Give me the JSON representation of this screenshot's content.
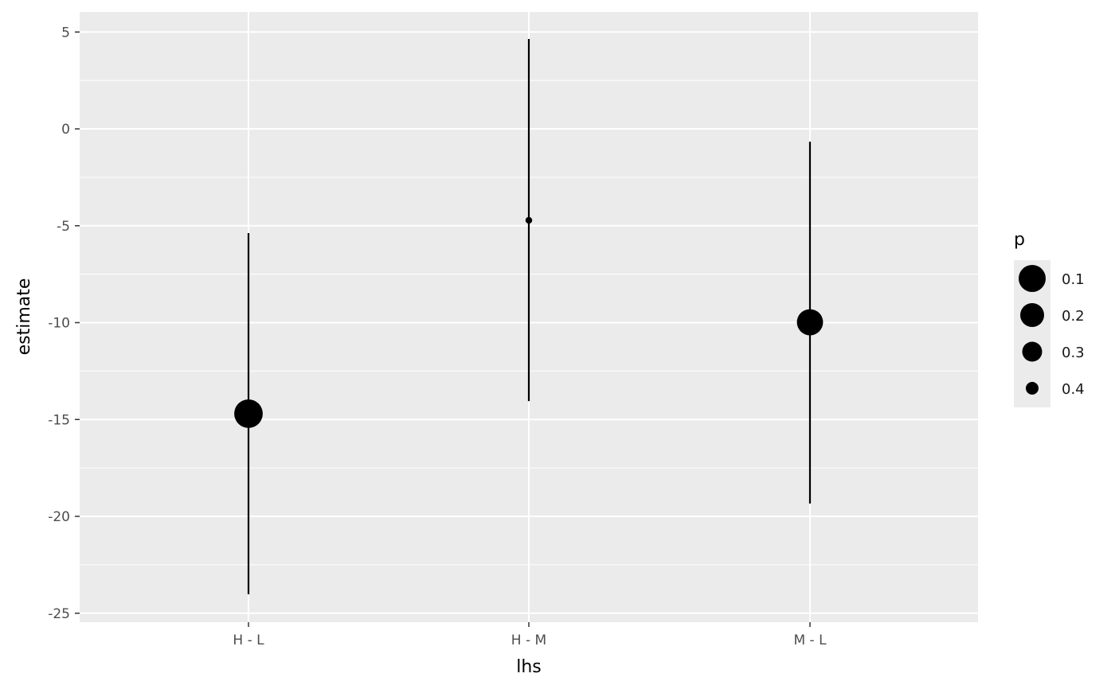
{
  "chart_data": {
    "type": "pointrange",
    "xlabel": "lhs",
    "ylabel": "estimate",
    "categories": [
      "H - L",
      "H - M",
      "M - L"
    ],
    "estimate": [
      -14.7,
      -4.72,
      -9.98
    ],
    "conf_low": [
      -24.02,
      -14.05,
      -19.34
    ],
    "conf_high": [
      -5.38,
      4.64,
      -0.66
    ],
    "p": [
      0.05,
      0.45,
      0.13
    ],
    "ylim": [
      -25.5,
      6.0
    ],
    "yticks": [
      5,
      0,
      -5,
      -10,
      -15,
      -20,
      -25
    ],
    "ytick_labels": [
      "5",
      "0",
      "-5",
      "-10",
      "-15",
      "-20",
      "-25"
    ],
    "grid": true,
    "legend": {
      "title": "p",
      "position": "right",
      "labels": [
        "0.1",
        "0.2",
        "0.3",
        "0.4"
      ],
      "values": [
        0.1,
        0.2,
        0.3,
        0.4
      ]
    },
    "colors": {
      "panel": "#ebebeb",
      "grid": "#ffffff",
      "point": "#000000"
    }
  }
}
